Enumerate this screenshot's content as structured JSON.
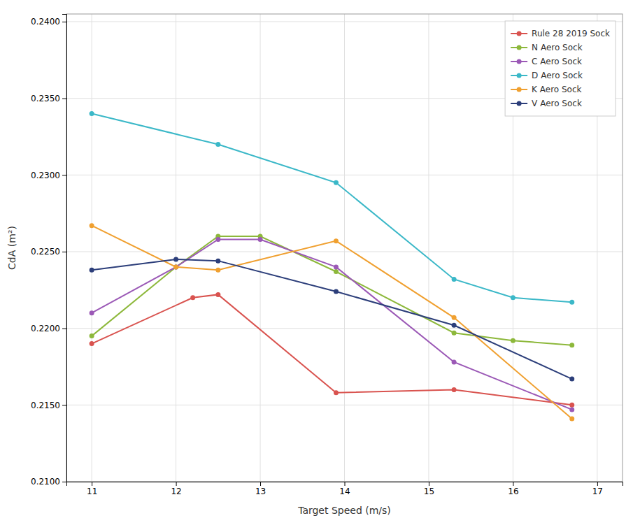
{
  "chart_data": {
    "type": "line",
    "xlabel": "Target Speed (m/s)",
    "ylabel": "CdA (m²)",
    "xlim": [
      10.7,
      17.3
    ],
    "ylim": [
      0.21,
      0.2405
    ],
    "xticks": [
      11,
      12,
      13,
      14,
      15,
      16,
      17
    ],
    "yticks": [
      {
        "value": 0.21,
        "label": "0.2100"
      },
      {
        "value": 0.215,
        "label": "0.2150"
      },
      {
        "value": 0.22,
        "label": "0.2200"
      },
      {
        "value": 0.225,
        "label": "0.2250"
      },
      {
        "value": 0.23,
        "label": "0.2300"
      },
      {
        "value": 0.235,
        "label": "0.2350"
      },
      {
        "value": 0.24,
        "label": "0.2400"
      }
    ],
    "grid": true,
    "legend": "upper right",
    "marker": "circle",
    "series": [
      {
        "name": "Rule 28 2019 Sock",
        "color": "#d9534f",
        "x": [
          11.0,
          12.2,
          12.5,
          13.9,
          15.3,
          16.7
        ],
        "values": [
          0.219,
          0.222,
          0.2222,
          0.2158,
          0.216,
          0.215
        ]
      },
      {
        "name": "N Aero Sock",
        "color": "#8db83b",
        "x": [
          11.0,
          12.0,
          12.5,
          13.0,
          13.9,
          15.3,
          16.0,
          16.7
        ],
        "values": [
          0.2195,
          0.224,
          0.226,
          0.226,
          0.2237,
          0.2197,
          0.2192,
          0.2189
        ]
      },
      {
        "name": "C Aero Sock",
        "color": "#9b59b6",
        "x": [
          11.0,
          12.0,
          12.5,
          13.0,
          13.9,
          15.3,
          16.7
        ],
        "values": [
          0.221,
          0.224,
          0.2258,
          0.2258,
          0.224,
          0.2178,
          0.2147
        ]
      },
      {
        "name": "D Aero Sock",
        "color": "#3bb8c8",
        "x": [
          11.0,
          12.5,
          13.9,
          15.3,
          16.0,
          16.7
        ],
        "values": [
          0.234,
          0.232,
          0.2295,
          0.2232,
          0.222,
          0.2217
        ]
      },
      {
        "name": "K Aero Sock",
        "color": "#f0a030",
        "x": [
          11.0,
          12.0,
          12.5,
          13.9,
          15.3,
          16.7
        ],
        "values": [
          0.2267,
          0.224,
          0.2238,
          0.2257,
          0.2207,
          0.2141
        ]
      },
      {
        "name": "V Aero Sock",
        "color": "#2c3e7a",
        "x": [
          11.0,
          12.0,
          12.5,
          13.9,
          15.3,
          16.7
        ],
        "values": [
          0.2238,
          0.2245,
          0.2244,
          0.2224,
          0.2202,
          0.2167
        ]
      }
    ]
  }
}
